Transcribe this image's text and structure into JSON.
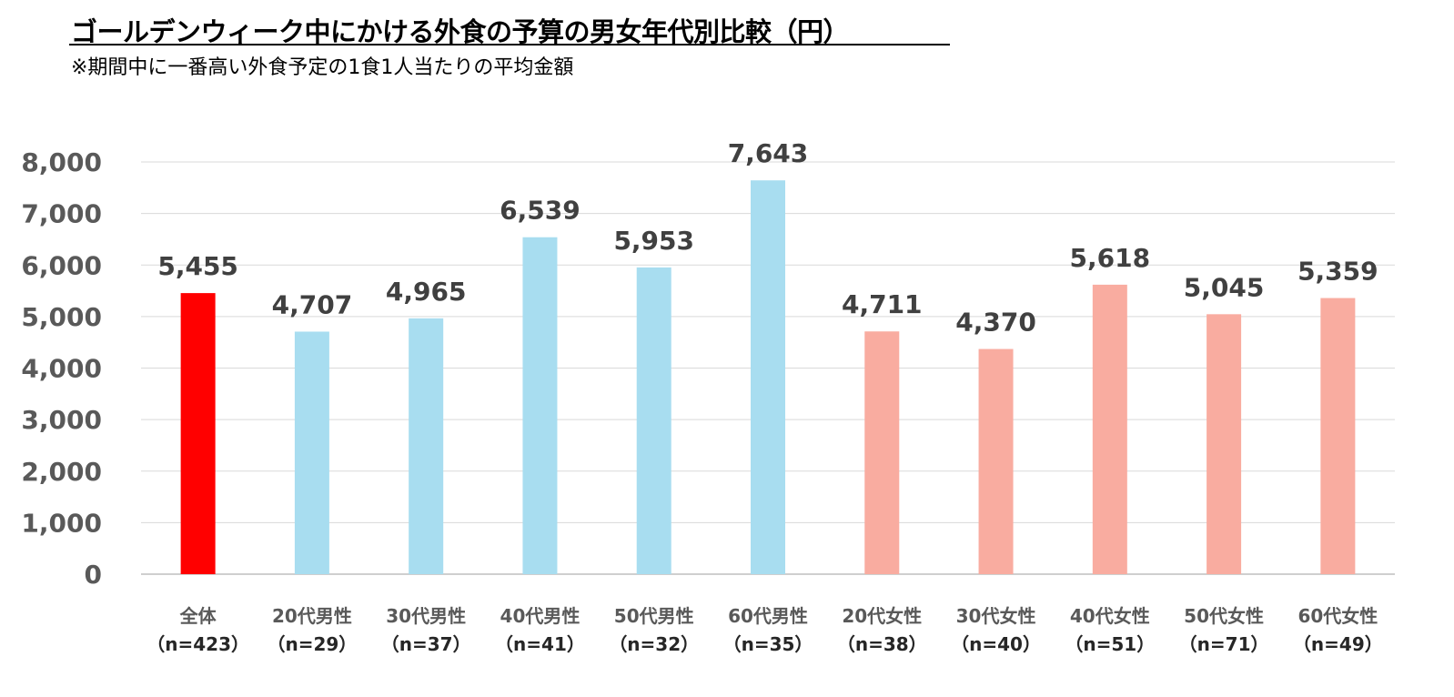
{
  "title": "ゴールデンウィーク中にかける外食の予算の男女年代別比較（円）",
  "subtitle": "※期間中に一番高い外食予定の1食1人当たりの平均金額",
  "colors": {
    "total": "#FF0000",
    "male": "#A8DDF0",
    "female": "#F9ACA0",
    "grid": "#D9D9D9",
    "axis_text": "#595959",
    "value_text": "#404040"
  },
  "chart_data": {
    "type": "bar",
    "title": "ゴールデンウィーク中にかける外食の予算の男女年代別比較（円）",
    "subtitle": "※期間中に一番高い外食予定の1食1人当たりの平均金額",
    "xlabel": "",
    "ylabel": "",
    "ylim": [
      0,
      8000
    ],
    "yticks": [
      "0",
      "1,000",
      "2,000",
      "3,000",
      "4,000",
      "5,000",
      "6,000",
      "7,000",
      "8,000"
    ],
    "grid": true,
    "legend": "none",
    "categories": [
      {
        "label": "全体",
        "n": "（n=423）",
        "group": "total"
      },
      {
        "label": "20代男性",
        "n": "（n=29）",
        "group": "male"
      },
      {
        "label": "30代男性",
        "n": "（n=37）",
        "group": "male"
      },
      {
        "label": "40代男性",
        "n": "（n=41）",
        "group": "male"
      },
      {
        "label": "50代男性",
        "n": "（n=32）",
        "group": "male"
      },
      {
        "label": "60代男性",
        "n": "（n=35）",
        "group": "male"
      },
      {
        "label": "20代女性",
        "n": "（n=38）",
        "group": "female"
      },
      {
        "label": "30代女性",
        "n": "（n=40）",
        "group": "female"
      },
      {
        "label": "40代女性",
        "n": "（n=51）",
        "group": "female"
      },
      {
        "label": "50代女性",
        "n": "（n=71）",
        "group": "female"
      },
      {
        "label": "60代女性",
        "n": "（n=49）",
        "group": "female"
      }
    ],
    "values": [
      5455,
      4707,
      4965,
      6539,
      5953,
      7643,
      4711,
      4370,
      5618,
      5045,
      5359
    ],
    "value_labels": [
      "5,455",
      "4,707",
      "4,965",
      "6,539",
      "5,953",
      "7,643",
      "4,711",
      "4,370",
      "5,618",
      "5,045",
      "5,359"
    ]
  }
}
